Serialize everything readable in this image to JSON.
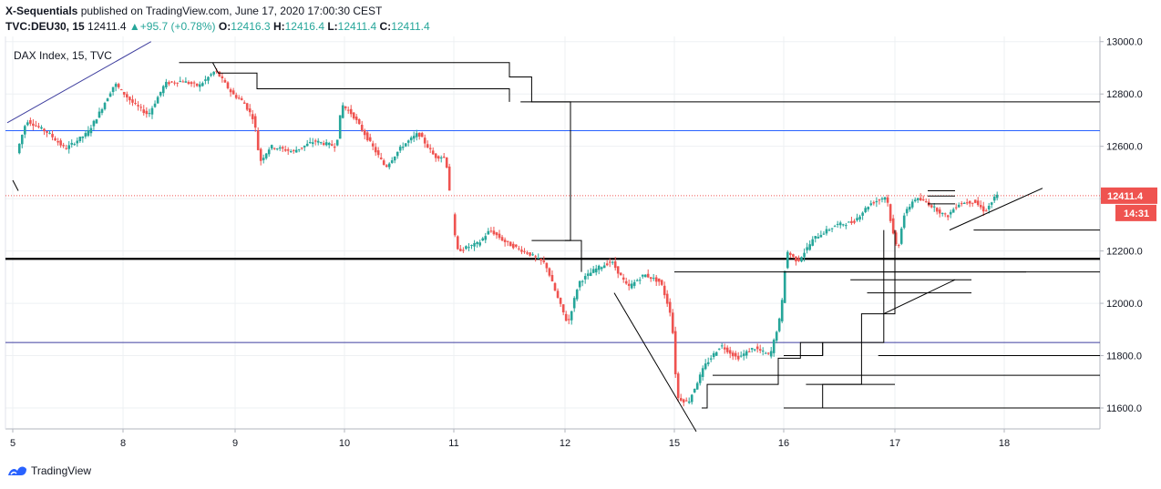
{
  "header": {
    "author": "X-Sequentials",
    "published_text": "published on TradingView.com, June 17, 2020 17:00:30 CEST",
    "symbol": "TVC:DEU30, 15",
    "last": "12411.4",
    "change_arrow": "▲",
    "change": "+95.7 (+0.78%)",
    "o_label": "O:",
    "o_value": "12416.3",
    "h_label": "H:",
    "h_value": "12416.4",
    "l_label": "L:",
    "l_value": "12411.4",
    "c_label": "C:",
    "c_value": "12411.4"
  },
  "footer": {
    "brand": "TradingView",
    "logo_icon": "tradingview-logo-icon"
  },
  "colors": {
    "up": "#26a69a",
    "down": "#ef5350",
    "price_tag": "#ef5350",
    "blue_line": "#2962ff",
    "navy_line": "#3f3f9f",
    "grid": "#eef0f3"
  },
  "chart_data": {
    "type": "candlestick",
    "title": "DAX Index, 15, TVC",
    "x_ticks": [
      "5",
      "8",
      "9",
      "10",
      "11",
      "12",
      "15",
      "16",
      "17",
      "18"
    ],
    "y_ticks": [
      "13000.0",
      "12800.0",
      "12600.0",
      "12400.0",
      "12200.0",
      "12000.0",
      "11800.0",
      "11600.0"
    ],
    "ylim": [
      11520,
      13020
    ],
    "last_price": 12411.4,
    "last_price_label": "12411.4",
    "countdown": "14:31",
    "horizontal_levels": [
      {
        "price": 12660,
        "color": "blue",
        "style": "solid"
      },
      {
        "price": 12170,
        "color": "black",
        "style": "bold"
      },
      {
        "price": 11850,
        "color": "navy",
        "style": "solid"
      },
      {
        "price": 12411.4,
        "color": "red",
        "style": "dotted"
      }
    ],
    "segments": [
      {
        "x": [
          -0.05,
          1.25
        ],
        "y": [
          12690,
          13000
        ]
      },
      {
        "x": [
          5.45,
          6.2
        ],
        "y": [
          12040,
          11510
        ]
      },
      {
        "x": [
          7.9,
          8.55
        ],
        "y": [
          11960,
          12090
        ]
      },
      {
        "x": [
          8.5,
          9.35
        ],
        "y": [
          12280,
          12440
        ]
      },
      {
        "x": [
          0.0,
          0.05
        ],
        "y": [
          12470,
          12430
        ]
      }
    ],
    "rays": [
      {
        "x0": 4.6,
        "price": 12770
      },
      {
        "x0": 8.0,
        "price": 12170
      },
      {
        "x0": 7.0,
        "price": 12120
      },
      {
        "x0": 8.72,
        "price": 12280
      },
      {
        "x0": 7.0,
        "price": 11600
      },
      {
        "x0": 6.35,
        "price": 11725
      },
      {
        "x0": 7.85,
        "price": 11800
      }
    ],
    "short_lines": [
      {
        "x0": 6.0,
        "x1": 9.2,
        "price": 12120
      },
      {
        "x0": 7.6,
        "x1": 8.7,
        "price": 12090
      },
      {
        "x0": 7.75,
        "x1": 8.7,
        "price": 12040
      },
      {
        "x0": 8.3,
        "x1": 8.55,
        "price": 12430
      },
      {
        "x0": 8.3,
        "x1": 8.55,
        "price": 12410
      },
      {
        "x0": 8.3,
        "x1": 8.55,
        "price": 12380
      }
    ],
    "steps": [
      {
        "x": [
          1.5,
          4.5,
          4.5,
          4.7,
          4.7,
          5.05,
          5.05,
          5.0
        ],
        "y": [
          12920,
          12920,
          12865,
          12865,
          12770,
          12770,
          12240,
          12240
        ]
      },
      {
        "x": [
          1.8,
          1.85,
          2.2,
          2.2,
          4.5,
          4.5
        ],
        "y": [
          12920,
          12880,
          12880,
          12820,
          12820,
          12770
        ]
      },
      {
        "x": [
          4.7,
          5.0,
          5.0,
          5.15,
          5.15
        ],
        "y": [
          12240,
          12240,
          12240,
          12240,
          12120
        ]
      },
      {
        "x": [
          6.25,
          6.3,
          6.3,
          6.95,
          6.95,
          7.15,
          7.15,
          7.35,
          7.35,
          7.0
        ],
        "y": [
          11600,
          11600,
          11690,
          11690,
          11790,
          11790,
          11850,
          11850,
          11800,
          11800
        ]
      },
      {
        "x": [
          7.35,
          7.35,
          7.6,
          7.6,
          7.9,
          7.9
        ],
        "y": [
          11800,
          11850,
          11850,
          11850,
          11850,
          12280
        ]
      },
      {
        "x": [
          7.2,
          7.2,
          7.7,
          7.7,
          8.0,
          8.0
        ],
        "y": [
          11690,
          11690,
          11690,
          11960,
          11960,
          12280
        ]
      },
      {
        "x": [
          7.35,
          7.35,
          7.55,
          7.55,
          8.0
        ],
        "y": [
          11600,
          11690,
          11690,
          11690,
          11690
        ]
      }
    ],
    "price_path": [
      {
        "x": 0.0,
        "y": 12480
      },
      {
        "x": 0.05,
        "y": 12430
      },
      {
        "x": 0.05,
        "y": 12560
      },
      {
        "x": 0.15,
        "y": 12700
      },
      {
        "x": 0.35,
        "y": 12650
      },
      {
        "x": 0.5,
        "y": 12590
      },
      {
        "x": 0.7,
        "y": 12650
      },
      {
        "x": 0.8,
        "y": 12720
      },
      {
        "x": 0.95,
        "y": 12840
      },
      {
        "x": 1.1,
        "y": 12770
      },
      {
        "x": 1.25,
        "y": 12720
      },
      {
        "x": 1.4,
        "y": 12840
      },
      {
        "x": 1.55,
        "y": 12850
      },
      {
        "x": 1.7,
        "y": 12830
      },
      {
        "x": 1.85,
        "y": 12890
      },
      {
        "x": 2.0,
        "y": 12800
      },
      {
        "x": 2.1,
        "y": 12770
      },
      {
        "x": 2.2,
        "y": 12700
      },
      {
        "x": 2.25,
        "y": 12540
      },
      {
        "x": 2.35,
        "y": 12600
      },
      {
        "x": 2.55,
        "y": 12580
      },
      {
        "x": 2.75,
        "y": 12620
      },
      {
        "x": 2.95,
        "y": 12600
      },
      {
        "x": 3.0,
        "y": 12760
      },
      {
        "x": 3.1,
        "y": 12720
      },
      {
        "x": 3.25,
        "y": 12620
      },
      {
        "x": 3.4,
        "y": 12520
      },
      {
        "x": 3.55,
        "y": 12600
      },
      {
        "x": 3.7,
        "y": 12650
      },
      {
        "x": 3.85,
        "y": 12560
      },
      {
        "x": 3.95,
        "y": 12560
      },
      {
        "x": 4.05,
        "y": 12200
      },
      {
        "x": 4.25,
        "y": 12230
      },
      {
        "x": 4.35,
        "y": 12280
      },
      {
        "x": 4.5,
        "y": 12230
      },
      {
        "x": 4.7,
        "y": 12190
      },
      {
        "x": 4.85,
        "y": 12150
      },
      {
        "x": 4.95,
        "y": 12030
      },
      {
        "x": 5.05,
        "y": 11920
      },
      {
        "x": 5.15,
        "y": 12080
      },
      {
        "x": 5.3,
        "y": 12130
      },
      {
        "x": 5.45,
        "y": 12160
      },
      {
        "x": 5.6,
        "y": 12060
      },
      {
        "x": 5.75,
        "y": 12110
      },
      {
        "x": 5.9,
        "y": 12080
      },
      {
        "x": 6.0,
        "y": 11950
      },
      {
        "x": 6.05,
        "y": 11640
      },
      {
        "x": 6.15,
        "y": 11620
      },
      {
        "x": 6.3,
        "y": 11760
      },
      {
        "x": 6.45,
        "y": 11840
      },
      {
        "x": 6.6,
        "y": 11790
      },
      {
        "x": 6.75,
        "y": 11830
      },
      {
        "x": 6.9,
        "y": 11800
      },
      {
        "x": 7.0,
        "y": 11960
      },
      {
        "x": 7.05,
        "y": 12200
      },
      {
        "x": 7.15,
        "y": 12160
      },
      {
        "x": 7.3,
        "y": 12250
      },
      {
        "x": 7.5,
        "y": 12300
      },
      {
        "x": 7.65,
        "y": 12310
      },
      {
        "x": 7.8,
        "y": 12380
      },
      {
        "x": 7.95,
        "y": 12410
      },
      {
        "x": 8.0,
        "y": 12280
      },
      {
        "x": 8.05,
        "y": 12200
      },
      {
        "x": 8.1,
        "y": 12330
      },
      {
        "x": 8.2,
        "y": 12400
      },
      {
        "x": 8.3,
        "y": 12390
      },
      {
        "x": 8.4,
        "y": 12360
      },
      {
        "x": 8.5,
        "y": 12330
      },
      {
        "x": 8.6,
        "y": 12380
      },
      {
        "x": 8.75,
        "y": 12390
      },
      {
        "x": 8.85,
        "y": 12350
      },
      {
        "x": 8.95,
        "y": 12411.4
      }
    ]
  }
}
